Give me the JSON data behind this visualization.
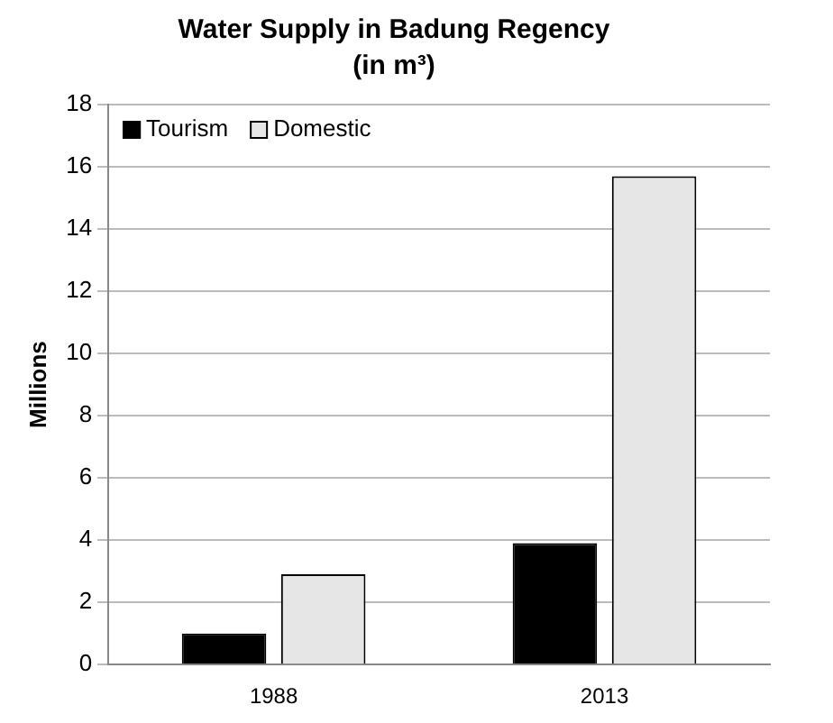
{
  "chart_data": {
    "type": "bar",
    "title": "Water Supply in Badung Regency",
    "subtitle": "(in m³)",
    "ylabel": "Millions",
    "categories": [
      "1988",
      "2013"
    ],
    "series": [
      {
        "name": "Tourism",
        "color": "#000000",
        "values": [
          1.0,
          3.9
        ]
      },
      {
        "name": "Domestic",
        "color": "#e6e6e6",
        "values": [
          2.9,
          15.7
        ]
      }
    ],
    "ylim": [
      0,
      18
    ],
    "yticks": [
      0,
      2,
      4,
      6,
      8,
      10,
      12,
      14,
      16,
      18
    ],
    "grid": "y",
    "legend": "top left"
  }
}
